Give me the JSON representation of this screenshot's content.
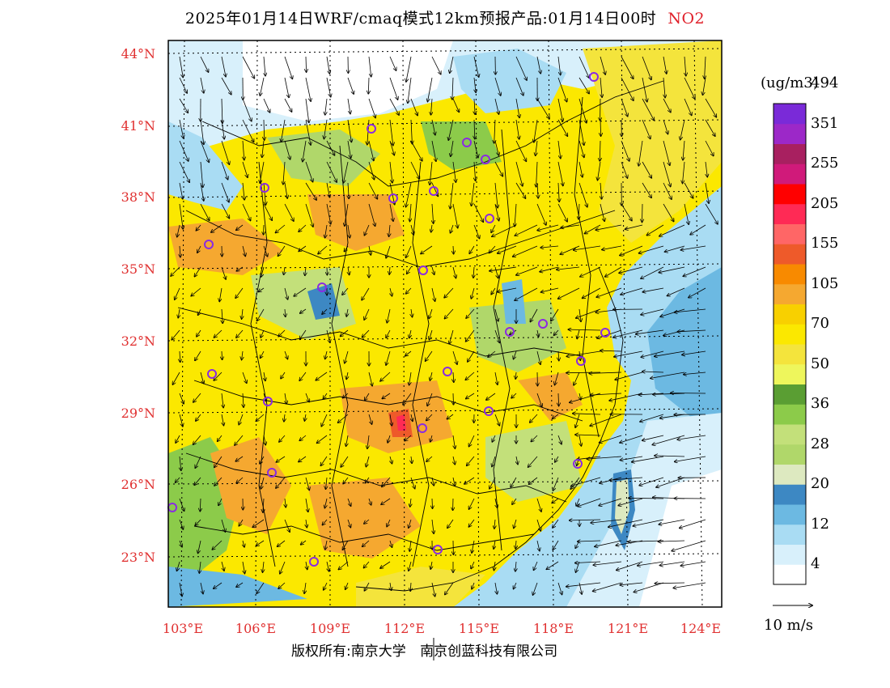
{
  "title": {
    "text": "2025年01月14日WRF/cmaq模式12km预报产品:01月14日00时",
    "pollutant": "NO2"
  },
  "map": {
    "lat_labels": [
      "44°N",
      "41°N",
      "38°N",
      "35°N",
      "32°N",
      "29°N",
      "26°N",
      "23°N"
    ],
    "lon_labels": [
      "103°E",
      "106°E",
      "109°E",
      "112°E",
      "115°E",
      "118°E",
      "121°E",
      "124°E"
    ],
    "label_color": "#e03030"
  },
  "colorbar": {
    "unit": "(ug/m3)",
    "colors": [
      "#ffffff",
      "#d8f0fb",
      "#a9dcf3",
      "#6cb9e2",
      "#3d88c3",
      "#dde9c0",
      "#b0d76a",
      "#c3e07a",
      "#8ccb4a",
      "#5a9e33",
      "#eef65c",
      "#f4e43c",
      "#fbe800",
      "#f8d000",
      "#f5a830",
      "#f88a00",
      "#ee5a2a",
      "#ff6666",
      "#ff2a55",
      "#ff0000",
      "#d01a7a",
      "#a82060",
      "#9c28c8",
      "#7a2ad8"
    ],
    "labels": [
      "4",
      "12",
      "20",
      "28",
      "36",
      "50",
      "70",
      "105",
      "155",
      "205",
      "255",
      "351",
      "494"
    ]
  },
  "wind_reference": {
    "label": "10 m/s"
  },
  "footer": {
    "left": "版权所有:南京大学",
    "right": "南京创蓝科技有限公司"
  }
}
